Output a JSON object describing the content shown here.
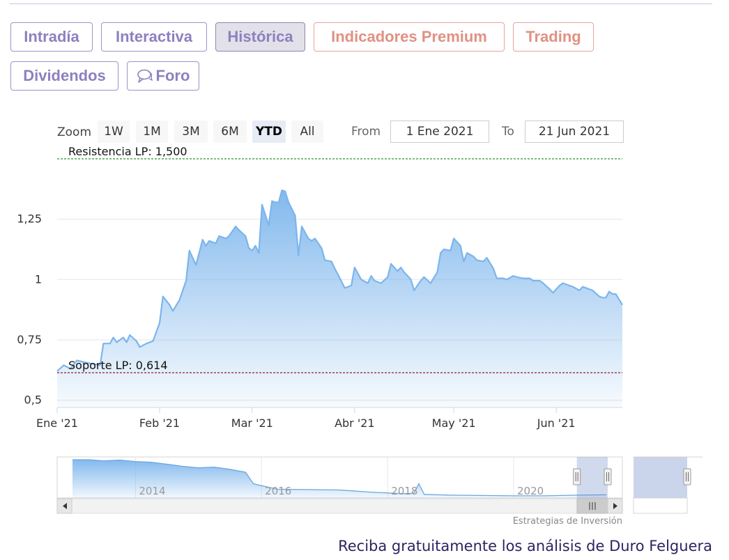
{
  "tabs": {
    "intradia": "Intradía",
    "interactiva": "Interactiva",
    "historica": "Histórica",
    "indicadores": "Indicadores Premium",
    "trading": "Trading",
    "dividendos": "Dividendos",
    "foro": "Foro"
  },
  "controls": {
    "zoom_label": "Zoom",
    "zoom_options": [
      "1W",
      "1M",
      "3M",
      "6M",
      "YTD",
      "All"
    ],
    "zoom_selected": "YTD",
    "from_label": "From",
    "from_value": "1 Ene 2021",
    "to_label": "To",
    "to_value": "21 Jun 2021"
  },
  "chart_data": {
    "type": "area",
    "title": "",
    "xlabel": "",
    "ylabel": "",
    "x_ticks": [
      "Ene '21",
      "Feb '21",
      "Mar '21",
      "Abr '21",
      "May '21",
      "Jun '21"
    ],
    "y_ticks": [
      "0,5",
      "0,75",
      "1",
      "1,25"
    ],
    "ylim": [
      0.47,
      1.5
    ],
    "grid": true,
    "color": "#7cb5ec",
    "annotations": {
      "resistance": {
        "label": "Resistencia LP: 1,500",
        "value": 1.5,
        "color": "#2f8f2f"
      },
      "support": {
        "label": "Soporte LP: 0,614",
        "value": 0.614,
        "color": "#8b1a2a"
      }
    },
    "series": [
      {
        "values": [
          [
            "2021-01-01",
            0.62
          ],
          [
            "2021-01-03",
            0.645
          ],
          [
            "2021-01-05",
            0.63
          ],
          [
            "2021-01-07",
            0.665
          ],
          [
            "2021-01-10",
            0.655
          ],
          [
            "2021-01-12",
            0.65
          ],
          [
            "2021-01-14",
            0.645
          ],
          [
            "2021-01-15",
            0.735
          ],
          [
            "2021-01-17",
            0.735
          ],
          [
            "2021-01-18",
            0.76
          ],
          [
            "2021-01-19",
            0.74
          ],
          [
            "2021-01-21",
            0.76
          ],
          [
            "2021-01-22",
            0.74
          ],
          [
            "2021-01-23",
            0.77
          ],
          [
            "2021-01-25",
            0.745
          ],
          [
            "2021-01-26",
            0.72
          ],
          [
            "2021-01-28",
            0.735
          ],
          [
            "2021-01-30",
            0.745
          ],
          [
            "2021-02-01",
            0.82
          ],
          [
            "2021-02-02",
            0.93
          ],
          [
            "2021-02-04",
            0.895
          ],
          [
            "2021-02-05",
            0.87
          ],
          [
            "2021-02-07",
            0.915
          ],
          [
            "2021-02-09",
            0.995
          ],
          [
            "2021-02-10",
            1.12
          ],
          [
            "2021-02-12",
            1.06
          ],
          [
            "2021-02-14",
            1.165
          ],
          [
            "2021-02-15",
            1.14
          ],
          [
            "2021-02-16",
            1.16
          ],
          [
            "2021-02-18",
            1.15
          ],
          [
            "2021-02-19",
            1.18
          ],
          [
            "2021-02-21",
            1.17
          ],
          [
            "2021-02-22",
            1.18
          ],
          [
            "2021-02-24",
            1.22
          ],
          [
            "2021-02-25",
            1.205
          ],
          [
            "2021-02-27",
            1.18
          ],
          [
            "2021-02-28",
            1.13
          ],
          [
            "2021-03-01",
            1.12
          ],
          [
            "2021-03-02",
            1.14
          ],
          [
            "2021-03-03",
            1.11
          ],
          [
            "2021-03-04",
            1.31
          ],
          [
            "2021-03-06",
            1.225
          ],
          [
            "2021-03-07",
            1.325
          ],
          [
            "2021-03-08",
            1.32
          ],
          [
            "2021-03-09",
            1.32
          ],
          [
            "2021-03-10",
            1.37
          ],
          [
            "2021-03-11",
            1.365
          ],
          [
            "2021-03-12",
            1.32
          ],
          [
            "2021-03-14",
            1.265
          ],
          [
            "2021-03-15",
            1.1
          ],
          [
            "2021-03-16",
            1.22
          ],
          [
            "2021-03-18",
            1.17
          ],
          [
            "2021-03-19",
            1.16
          ],
          [
            "2021-03-20",
            1.17
          ],
          [
            "2021-03-22",
            1.13
          ],
          [
            "2021-03-23",
            1.08
          ],
          [
            "2021-03-25",
            1.075
          ],
          [
            "2021-03-26",
            1.045
          ],
          [
            "2021-03-27",
            1.02
          ],
          [
            "2021-03-29",
            0.965
          ],
          [
            "2021-03-31",
            0.975
          ],
          [
            "2021-04-01",
            1.05
          ],
          [
            "2021-04-03",
            1.0
          ],
          [
            "2021-04-05",
            0.985
          ],
          [
            "2021-04-06",
            1.015
          ],
          [
            "2021-04-07",
            0.995
          ],
          [
            "2021-04-09",
            0.985
          ],
          [
            "2021-04-11",
            1.01
          ],
          [
            "2021-04-12",
            1.065
          ],
          [
            "2021-04-14",
            1.035
          ],
          [
            "2021-04-15",
            1.05
          ],
          [
            "2021-04-16",
            1.03
          ],
          [
            "2021-04-18",
            1.0
          ],
          [
            "2021-04-19",
            0.955
          ],
          [
            "2021-04-21",
            0.995
          ],
          [
            "2021-04-22",
            1.01
          ],
          [
            "2021-04-24",
            0.985
          ],
          [
            "2021-04-26",
            1.03
          ],
          [
            "2021-04-27",
            1.11
          ],
          [
            "2021-04-28",
            1.125
          ],
          [
            "2021-04-30",
            1.12
          ],
          [
            "2021-05-01",
            1.17
          ],
          [
            "2021-05-03",
            1.14
          ],
          [
            "2021-05-04",
            1.075
          ],
          [
            "2021-05-05",
            1.11
          ],
          [
            "2021-05-07",
            1.095
          ],
          [
            "2021-05-08",
            1.08
          ],
          [
            "2021-05-10",
            1.075
          ],
          [
            "2021-05-11",
            1.09
          ],
          [
            "2021-05-13",
            1.045
          ],
          [
            "2021-05-14",
            1.005
          ],
          [
            "2021-05-16",
            1.005
          ],
          [
            "2021-05-17",
            1.0
          ],
          [
            "2021-05-19",
            1.015
          ],
          [
            "2021-05-20",
            1.01
          ],
          [
            "2021-05-22",
            1.005
          ],
          [
            "2021-05-24",
            1.005
          ],
          [
            "2021-05-25",
            0.995
          ],
          [
            "2021-05-27",
            0.995
          ],
          [
            "2021-05-28",
            0.985
          ],
          [
            "2021-05-30",
            0.96
          ],
          [
            "2021-05-31",
            0.945
          ],
          [
            "2021-06-02",
            0.975
          ],
          [
            "2021-06-03",
            0.985
          ],
          [
            "2021-06-05",
            0.975
          ],
          [
            "2021-06-06",
            0.97
          ],
          [
            "2021-06-08",
            0.955
          ],
          [
            "2021-06-09",
            0.97
          ],
          [
            "2021-06-11",
            0.96
          ],
          [
            "2021-06-12",
            0.955
          ],
          [
            "2021-06-14",
            0.93
          ],
          [
            "2021-06-15",
            0.925
          ],
          [
            "2021-06-16",
            0.925
          ],
          [
            "2021-06-17",
            0.95
          ],
          [
            "2021-06-18",
            0.94
          ],
          [
            "2021-06-19",
            0.94
          ],
          [
            "2021-06-21",
            0.895
          ]
        ]
      }
    ],
    "navigator": {
      "x_ticks": [
        "2014",
        "2016",
        "2018",
        "2020"
      ],
      "values": [
        [
          "2013-01-01",
          1.0
        ],
        [
          "2013-04-01",
          1.0
        ],
        [
          "2013-07-01",
          0.97
        ],
        [
          "2013-10-01",
          0.99
        ],
        [
          "2014-01-01",
          0.95
        ],
        [
          "2014-04-01",
          0.93
        ],
        [
          "2014-07-01",
          0.88
        ],
        [
          "2014-10-01",
          0.82
        ],
        [
          "2015-01-01",
          0.78
        ],
        [
          "2015-04-01",
          0.8
        ],
        [
          "2015-07-01",
          0.74
        ],
        [
          "2015-10-01",
          0.66
        ],
        [
          "2015-11-15",
          0.35
        ],
        [
          "2016-04-01",
          0.2
        ],
        [
          "2016-10-01",
          0.19
        ],
        [
          "2017-04-01",
          0.18
        ],
        [
          "2017-10-01",
          0.12
        ],
        [
          "2018-04-01",
          0.08
        ],
        [
          "2018-06-01",
          0.09
        ],
        [
          "2018-07-01",
          0.35
        ],
        [
          "2018-08-01",
          0.06
        ],
        [
          "2019-01-01",
          0.04
        ],
        [
          "2019-07-01",
          0.03
        ],
        [
          "2020-01-01",
          0.02
        ],
        [
          "2020-07-01",
          0.02
        ],
        [
          "2021-01-01",
          0.04
        ],
        [
          "2021-06-21",
          0.05
        ]
      ]
    },
    "credit": "Estrategias de Inversión"
  },
  "footer": "Reciba gratuitamente los análisis de Duro Felguera"
}
